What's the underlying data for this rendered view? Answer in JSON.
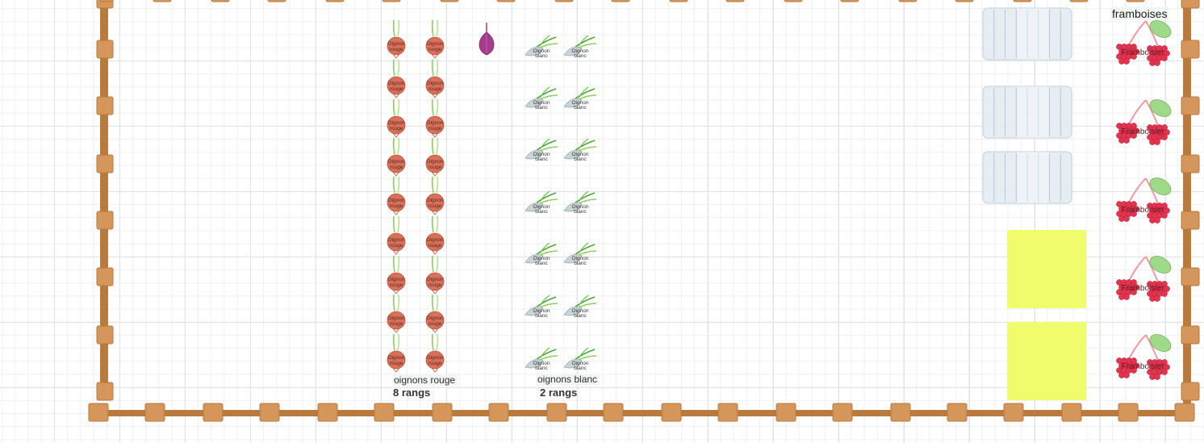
{
  "colors": {
    "fence": "#b87a3d",
    "fence_post": "#d4965a",
    "red_onion": "#d9705a",
    "onion_leaf": "#8fcf5e",
    "purple_onion": "#a53c8e",
    "white_onion": "#c9d4d6",
    "greenhouse": "#e4ecf2",
    "yellow_bed": "#f0fc6c",
    "raspberry": "#e2334f",
    "raspberry_leaf": "#9fd98a"
  },
  "icons": {
    "red_onion": "onion-red-icon",
    "purple_onion": "onion-purple-icon",
    "white_onion": "onion-white-icon",
    "raspberry": "raspberry-icon",
    "greenhouse": "greenhouse-tunnel-icon"
  },
  "plants": {
    "red_onion_text": "Oignon rouge",
    "white_onion_text": "Oignon blanc",
    "raspberry_text": "Framboisier"
  },
  "labels": {
    "red_onion_name": "oignons rouge",
    "red_onion_count": "8 rangs",
    "white_onion_name": "oignons blanc",
    "white_onion_count": "2 rangs",
    "raspberry_title": "framboises"
  }
}
